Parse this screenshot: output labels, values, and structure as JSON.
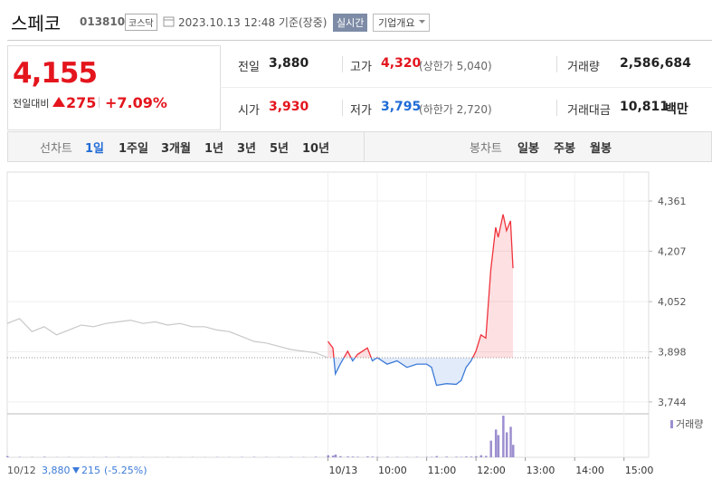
{
  "header": {
    "name": "스페코",
    "code": "013810",
    "market": "코스닥",
    "datetime": "2023.10.13 12:48 기준(장중)",
    "realtime": "실시간",
    "company_info": "기업개요"
  },
  "summary": {
    "price": "4,155",
    "change_label": "전일대비",
    "change": "275",
    "change_pct": "+7.09%",
    "stats": [
      {
        "label": "전일",
        "value": "3,880"
      },
      {
        "label": "고가",
        "value": "4,320",
        "note": "(상한가 5,040)"
      },
      {
        "label": "거래량",
        "value": "2,586,684"
      },
      {
        "label": "시가",
        "value": "3,930"
      },
      {
        "label": "저가",
        "value": "3,795",
        "note": "(하한가 2,720)"
      },
      {
        "label": "거래대금",
        "value": "10,811",
        "unit": "백만"
      }
    ]
  },
  "tabs": {
    "line_label": "선차트",
    "line": [
      "1일",
      "1주일",
      "3개월",
      "1년",
      "3년",
      "5년",
      "10년"
    ],
    "candle_label": "봉차트",
    "candle": [
      "일봉",
      "주봉",
      "월봉"
    ]
  },
  "prev_day": {
    "date": "10/12",
    "close": "3,880",
    "change": "215",
    "change_pct": "(-5.25%)"
  },
  "chart_data": {
    "type": "line",
    "xlim": [
      2.5,
      15.5
    ],
    "xticks": [
      {
        "value": 9,
        "label": "10/13"
      },
      {
        "value": 10,
        "label": "10:00"
      },
      {
        "value": 11,
        "label": "11:00"
      },
      {
        "value": 12,
        "label": "12:00"
      },
      {
        "value": 13,
        "label": "13:00"
      },
      {
        "value": 14,
        "label": "14:00"
      },
      {
        "value": 15,
        "label": "15:00"
      }
    ],
    "ylim": [
      3713,
      4450
    ],
    "yticks": [
      {
        "value": 3744,
        "label": "3,744"
      },
      {
        "value": 3898,
        "label": "3,898"
      },
      {
        "value": 4052,
        "label": "4,052"
      },
      {
        "value": 4207,
        "label": "4,207"
      },
      {
        "value": 4361,
        "label": "4,361"
      }
    ],
    "grid": true,
    "base": 3880,
    "series": [
      {
        "color": "#c8c8c8",
        "x": [
          2.5,
          2.75,
          3,
          3.25,
          3.5,
          3.75,
          4,
          4.25,
          4.5,
          4.75,
          5,
          5.25,
          5.5,
          5.75,
          6,
          6.25,
          6.5,
          6.75,
          7,
          7.25,
          7.5,
          7.75,
          8,
          8.25,
          8.5,
          8.75,
          9
        ],
        "values": [
          3985,
          4000,
          3960,
          3975,
          3950,
          3965,
          3980,
          3975,
          3985,
          3990,
          3995,
          3985,
          3990,
          3980,
          3985,
          3975,
          3975,
          3965,
          3960,
          3945,
          3930,
          3925,
          3915,
          3905,
          3900,
          3895,
          3880
        ]
      },
      {
        "color": "#f0323c",
        "below_color": "#3d7bd8",
        "x": [
          9,
          9.1,
          9.15,
          9.25,
          9.4,
          9.5,
          9.6,
          9.8,
          9.9,
          10,
          10.2,
          10.4,
          10.6,
          10.8,
          11,
          11.1,
          11.2,
          11.4,
          11.6,
          11.7,
          11.8,
          11.9,
          12,
          12.1,
          12.2,
          12.3,
          12.4,
          12.45,
          12.55,
          12.62,
          12.7,
          12.75
        ],
        "values": [
          3930,
          3910,
          3830,
          3860,
          3900,
          3870,
          3890,
          3910,
          3870,
          3880,
          3860,
          3870,
          3850,
          3860,
          3860,
          3850,
          3795,
          3800,
          3798,
          3810,
          3850,
          3870,
          3900,
          3950,
          3940,
          4150,
          4280,
          4250,
          4320,
          4270,
          4300,
          4155
        ]
      }
    ],
    "volume": {
      "name": "거래량",
      "color": "#9d8fcf",
      "x": [
        2.5,
        2.75,
        3,
        3.25,
        3.5,
        3.75,
        4,
        4.25,
        4.5,
        4.75,
        5,
        5.25,
        5.5,
        5.75,
        6,
        6.25,
        6.5,
        6.75,
        7,
        7.25,
        7.5,
        7.75,
        8,
        8.25,
        8.5,
        8.75,
        9,
        9.1,
        9.15,
        9.25,
        9.4,
        9.5,
        9.6,
        9.8,
        9.9,
        10,
        10.2,
        10.4,
        10.6,
        10.8,
        11,
        11.1,
        11.2,
        11.4,
        11.6,
        11.7,
        11.8,
        11.9,
        12,
        12.1,
        12.2,
        12.3,
        12.4,
        12.45,
        12.55,
        12.62,
        12.7,
        12.75
      ],
      "values": [
        9000,
        3000,
        2000,
        4000,
        1500,
        2000,
        1000,
        1500,
        3000,
        2000,
        1000,
        1500,
        1000,
        2000,
        1000,
        1500,
        1000,
        2000,
        1500,
        2500,
        3000,
        2000,
        1500,
        2500,
        2000,
        4000,
        15000,
        12000,
        20000,
        8000,
        6000,
        5000,
        4000,
        6000,
        5000,
        3000,
        4000,
        3000,
        2000,
        3000,
        2500,
        3000,
        9000,
        5000,
        4000,
        3000,
        6000,
        5000,
        8000,
        15000,
        10000,
        120000,
        200000,
        160000,
        300000,
        180000,
        220000,
        90000
      ]
    }
  }
}
